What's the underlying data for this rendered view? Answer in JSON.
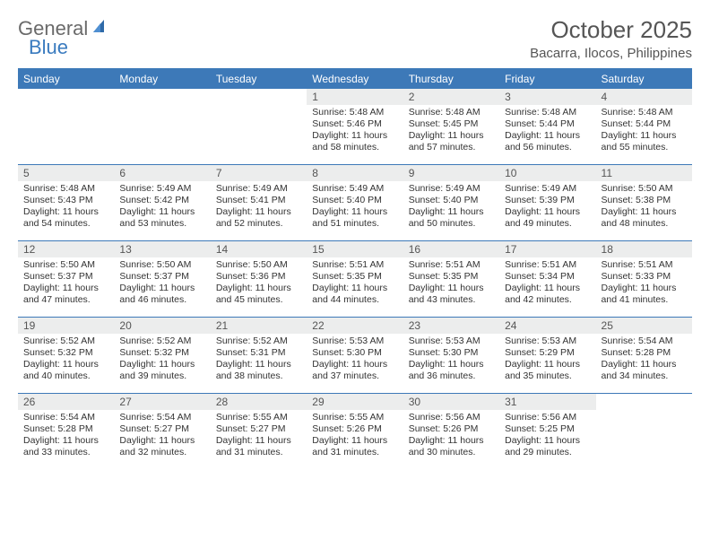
{
  "logo": {
    "word1": "General",
    "word2": "Blue"
  },
  "title": "October 2025",
  "location": "Bacarra, Ilocos, Philippines",
  "colors": {
    "header_bg": "#3d79b8",
    "header_text": "#ffffff",
    "rule": "#3d79b8",
    "daynum_bg": "#eceded",
    "text": "#333333",
    "title_text": "#555555"
  },
  "weekdays": [
    "Sunday",
    "Monday",
    "Tuesday",
    "Wednesday",
    "Thursday",
    "Friday",
    "Saturday"
  ],
  "weeks": [
    [
      null,
      null,
      null,
      {
        "n": "1",
        "sr": "5:48 AM",
        "ss": "5:46 PM",
        "dl": "11 hours and 58 minutes."
      },
      {
        "n": "2",
        "sr": "5:48 AM",
        "ss": "5:45 PM",
        "dl": "11 hours and 57 minutes."
      },
      {
        "n": "3",
        "sr": "5:48 AM",
        "ss": "5:44 PM",
        "dl": "11 hours and 56 minutes."
      },
      {
        "n": "4",
        "sr": "5:48 AM",
        "ss": "5:44 PM",
        "dl": "11 hours and 55 minutes."
      }
    ],
    [
      {
        "n": "5",
        "sr": "5:48 AM",
        "ss": "5:43 PM",
        "dl": "11 hours and 54 minutes."
      },
      {
        "n": "6",
        "sr": "5:49 AM",
        "ss": "5:42 PM",
        "dl": "11 hours and 53 minutes."
      },
      {
        "n": "7",
        "sr": "5:49 AM",
        "ss": "5:41 PM",
        "dl": "11 hours and 52 minutes."
      },
      {
        "n": "8",
        "sr": "5:49 AM",
        "ss": "5:40 PM",
        "dl": "11 hours and 51 minutes."
      },
      {
        "n": "9",
        "sr": "5:49 AM",
        "ss": "5:40 PM",
        "dl": "11 hours and 50 minutes."
      },
      {
        "n": "10",
        "sr": "5:49 AM",
        "ss": "5:39 PM",
        "dl": "11 hours and 49 minutes."
      },
      {
        "n": "11",
        "sr": "5:50 AM",
        "ss": "5:38 PM",
        "dl": "11 hours and 48 minutes."
      }
    ],
    [
      {
        "n": "12",
        "sr": "5:50 AM",
        "ss": "5:37 PM",
        "dl": "11 hours and 47 minutes."
      },
      {
        "n": "13",
        "sr": "5:50 AM",
        "ss": "5:37 PM",
        "dl": "11 hours and 46 minutes."
      },
      {
        "n": "14",
        "sr": "5:50 AM",
        "ss": "5:36 PM",
        "dl": "11 hours and 45 minutes."
      },
      {
        "n": "15",
        "sr": "5:51 AM",
        "ss": "5:35 PM",
        "dl": "11 hours and 44 minutes."
      },
      {
        "n": "16",
        "sr": "5:51 AM",
        "ss": "5:35 PM",
        "dl": "11 hours and 43 minutes."
      },
      {
        "n": "17",
        "sr": "5:51 AM",
        "ss": "5:34 PM",
        "dl": "11 hours and 42 minutes."
      },
      {
        "n": "18",
        "sr": "5:51 AM",
        "ss": "5:33 PM",
        "dl": "11 hours and 41 minutes."
      }
    ],
    [
      {
        "n": "19",
        "sr": "5:52 AM",
        "ss": "5:32 PM",
        "dl": "11 hours and 40 minutes."
      },
      {
        "n": "20",
        "sr": "5:52 AM",
        "ss": "5:32 PM",
        "dl": "11 hours and 39 minutes."
      },
      {
        "n": "21",
        "sr": "5:52 AM",
        "ss": "5:31 PM",
        "dl": "11 hours and 38 minutes."
      },
      {
        "n": "22",
        "sr": "5:53 AM",
        "ss": "5:30 PM",
        "dl": "11 hours and 37 minutes."
      },
      {
        "n": "23",
        "sr": "5:53 AM",
        "ss": "5:30 PM",
        "dl": "11 hours and 36 minutes."
      },
      {
        "n": "24",
        "sr": "5:53 AM",
        "ss": "5:29 PM",
        "dl": "11 hours and 35 minutes."
      },
      {
        "n": "25",
        "sr": "5:54 AM",
        "ss": "5:28 PM",
        "dl": "11 hours and 34 minutes."
      }
    ],
    [
      {
        "n": "26",
        "sr": "5:54 AM",
        "ss": "5:28 PM",
        "dl": "11 hours and 33 minutes."
      },
      {
        "n": "27",
        "sr": "5:54 AM",
        "ss": "5:27 PM",
        "dl": "11 hours and 32 minutes."
      },
      {
        "n": "28",
        "sr": "5:55 AM",
        "ss": "5:27 PM",
        "dl": "11 hours and 31 minutes."
      },
      {
        "n": "29",
        "sr": "5:55 AM",
        "ss": "5:26 PM",
        "dl": "11 hours and 31 minutes."
      },
      {
        "n": "30",
        "sr": "5:56 AM",
        "ss": "5:26 PM",
        "dl": "11 hours and 30 minutes."
      },
      {
        "n": "31",
        "sr": "5:56 AM",
        "ss": "5:25 PM",
        "dl": "11 hours and 29 minutes."
      },
      null
    ]
  ],
  "labels": {
    "sunrise": "Sunrise: ",
    "sunset": "Sunset: ",
    "daylight": "Daylight: "
  }
}
